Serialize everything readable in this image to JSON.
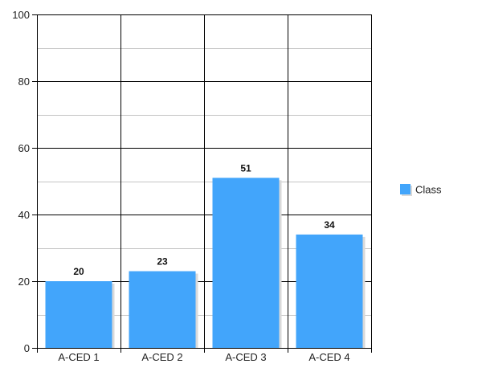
{
  "chart_data": {
    "type": "bar",
    "categories": [
      "A-CED 1",
      "A-CED 2",
      "A-CED 3",
      "A-CED 4"
    ],
    "series": [
      {
        "name": "Class",
        "values": [
          20,
          23,
          51,
          34
        ],
        "color": "#42a5fb"
      }
    ],
    "ylim": [
      0,
      100
    ],
    "yticks": [
      0,
      20,
      40,
      60,
      80,
      100
    ],
    "grid": true,
    "minor_grid": true,
    "data_labels": true,
    "legend_position": "right",
    "title": "",
    "xlabel": "",
    "ylabel": ""
  },
  "colors": {
    "bar": "#42a5fb",
    "grid_major": "#000000",
    "grid_minor": "#c4c4c4",
    "shadow": "#d9d9d9"
  }
}
